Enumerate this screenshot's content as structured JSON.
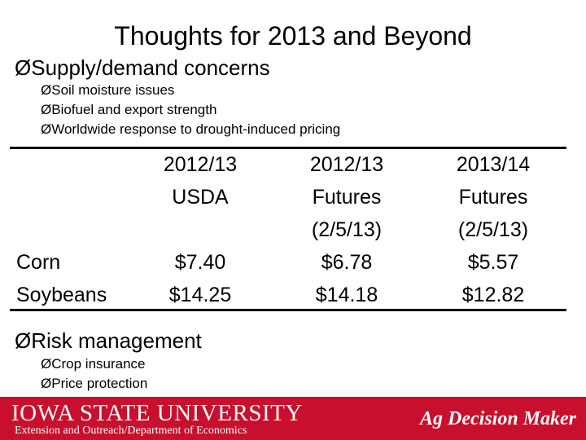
{
  "title": "Thoughts for 2013 and Beyond",
  "bullet_marker": "Ø",
  "section1": {
    "heading": "Supply/demand concerns",
    "items": [
      "Soil moisture issues",
      "Biofuel and export strength",
      "Worldwide response to drought-induced pricing"
    ]
  },
  "table": {
    "columns": [
      [
        "2012/13",
        "USDA",
        ""
      ],
      [
        "2012/13",
        "Futures",
        "(2/5/13)"
      ],
      [
        "2013/14",
        "Futures",
        "(2/5/13)"
      ]
    ],
    "rows": [
      {
        "label": "Corn",
        "values": [
          "$7.40",
          "$6.78",
          "$5.57"
        ]
      },
      {
        "label": "Soybeans",
        "values": [
          "$14.25",
          "$14.18",
          "$12.82"
        ]
      }
    ]
  },
  "section2": {
    "heading": "Risk management",
    "items": [
      "Crop insurance",
      "Price protection"
    ]
  },
  "footer": {
    "university": "IOWA STATE UNIVERSITY",
    "department": "Extension and Outreach/Department of Economics",
    "brand": "Ag Decision Maker",
    "color": "#c8102e"
  }
}
